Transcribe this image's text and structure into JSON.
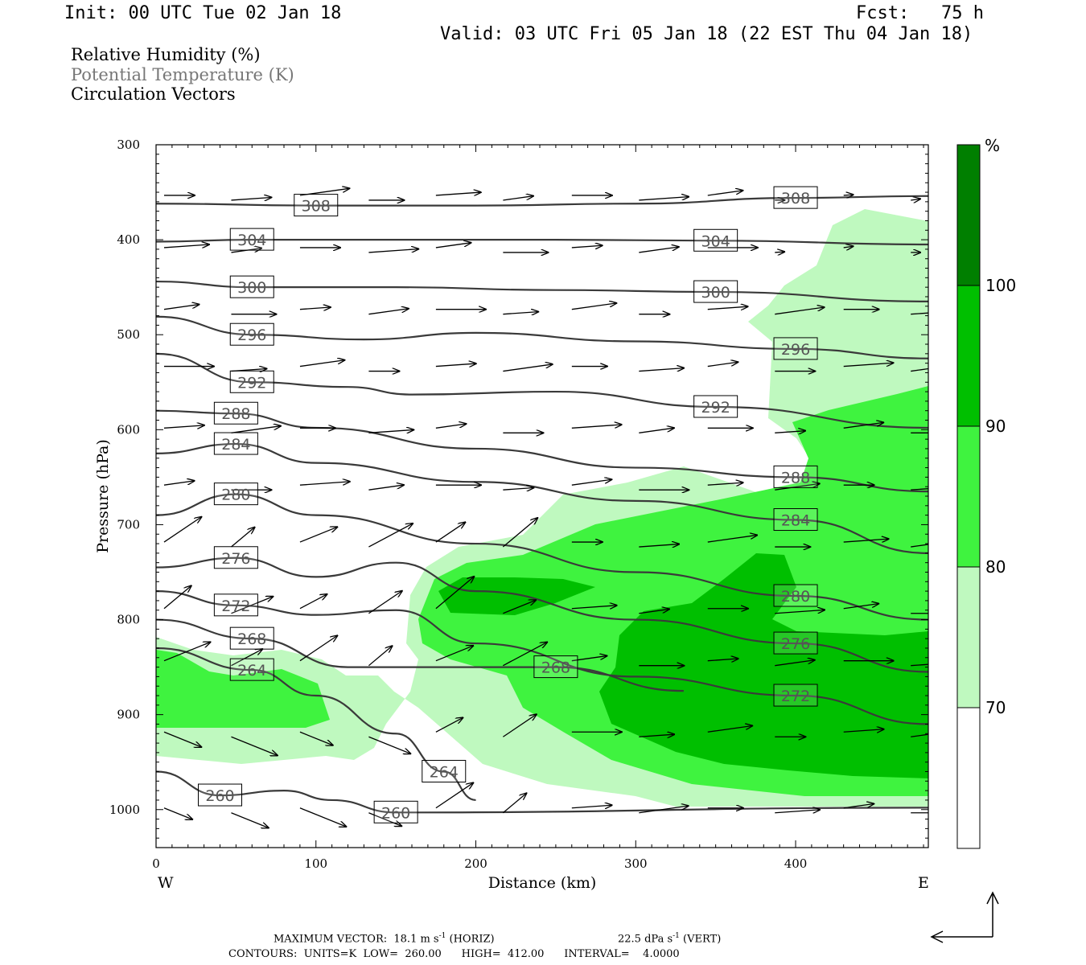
{
  "header": {
    "init": "Init: 00 UTC Tue 02 Jan 18",
    "fcst": "Fcst:   75 h",
    "valid": "Valid: 03 UTC Fri 05 Jan 18 (22 EST Thu 04 Jan 18)"
  },
  "legend": {
    "line1": "Relative Humidity (%)",
    "line2": "Potential Temperature (K)",
    "line3": "Circulation Vectors"
  },
  "footer": {
    "max_vector_label": "MAXIMUM VECTOR:",
    "max_vector_horiz": "18.1 m s",
    "horiz_suffix": " (HORIZ)",
    "max_vector_vert": "22.5 dPa s",
    "vert_suffix": " (VERT)",
    "contours": "CONTOURS:  UNITS=K  LOW=  260.00      HIGH=  412.00      INTERVAL=    4.0000",
    "exponent": "-1"
  },
  "chart_data": {
    "type": "cross-section",
    "xlabel": "Distance (km)",
    "ylabel": "Pressure (hPa)",
    "x_ticks": [
      "0",
      "100",
      "200",
      "300",
      "400"
    ],
    "y_ticks": [
      "300",
      "400",
      "500",
      "600",
      "700",
      "800",
      "900",
      "1000"
    ],
    "xlim": [
      0,
      483
    ],
    "ylim": [
      1040,
      300
    ],
    "direction_left": "W",
    "direction_right": "E",
    "colorbar": {
      "unit": "%",
      "levels": [
        "70",
        "80",
        "90",
        "100"
      ],
      "colors": {
        "below70": "#ffffff",
        "r70_80": "#bff9bf",
        "r80_90": "#3ff33f",
        "r90_100": "#00bf00",
        "r100": "#007f00"
      }
    },
    "theta_contours": [
      {
        "label": "308",
        "x": [
          0,
          100,
          200,
          300,
          400,
          483
        ],
        "p": [
          362,
          364,
          364,
          362,
          356,
          354
        ]
      },
      {
        "label": "304",
        "x": [
          0,
          60,
          150,
          250,
          350,
          483
        ],
        "p": [
          402,
          400,
          400,
          400,
          401,
          405
        ]
      },
      {
        "label": "300",
        "x": [
          0,
          60,
          150,
          250,
          350,
          483
        ],
        "p": [
          444,
          450,
          450,
          453,
          455,
          465
        ]
      },
      {
        "label": "296",
        "x": [
          0,
          60,
          130,
          200,
          300,
          400,
          483
        ],
        "p": [
          481,
          500,
          505,
          498,
          507,
          515,
          525
        ]
      },
      {
        "label": "292",
        "x": [
          0,
          60,
          120,
          160,
          250,
          350,
          483
        ],
        "p": [
          520,
          550,
          555,
          563,
          560,
          576,
          598
        ]
      },
      {
        "label": "288",
        "x": [
          0,
          50,
          100,
          200,
          300,
          400,
          483
        ],
        "p": [
          580,
          583,
          598,
          620,
          640,
          650,
          665
        ]
      },
      {
        "label": "284",
        "x": [
          0,
          50,
          100,
          200,
          300,
          400,
          483
        ],
        "p": [
          625,
          615,
          635,
          655,
          675,
          695,
          730
        ]
      },
      {
        "label": "280",
        "x": [
          0,
          50,
          100,
          200,
          300,
          400,
          483
        ],
        "p": [
          690,
          668,
          690,
          720,
          750,
          775,
          800
        ]
      },
      {
        "label": "276",
        "x": [
          0,
          50,
          100,
          150,
          200,
          300,
          400,
          483
        ],
        "p": [
          745,
          735,
          755,
          740,
          770,
          800,
          825,
          855
        ]
      },
      {
        "label": "272",
        "x": [
          0,
          50,
          100,
          150,
          200,
          300,
          400,
          483
        ],
        "p": [
          770,
          785,
          795,
          790,
          825,
          860,
          880,
          910
        ]
      },
      {
        "label": "268",
        "x": [
          0,
          60,
          120,
          150,
          250,
          330
        ],
        "p": [
          800,
          820,
          850,
          850,
          850,
          875
        ]
      },
      {
        "label": "264",
        "x": [
          0,
          60,
          100,
          150,
          180,
          200
        ],
        "p": [
          830,
          853,
          880,
          920,
          960,
          990
        ]
      },
      {
        "label": "260",
        "x": [
          0,
          40,
          80,
          110,
          150,
          483
        ],
        "p": [
          960,
          985,
          980,
          990,
          1003,
          998
        ]
      }
    ]
  }
}
